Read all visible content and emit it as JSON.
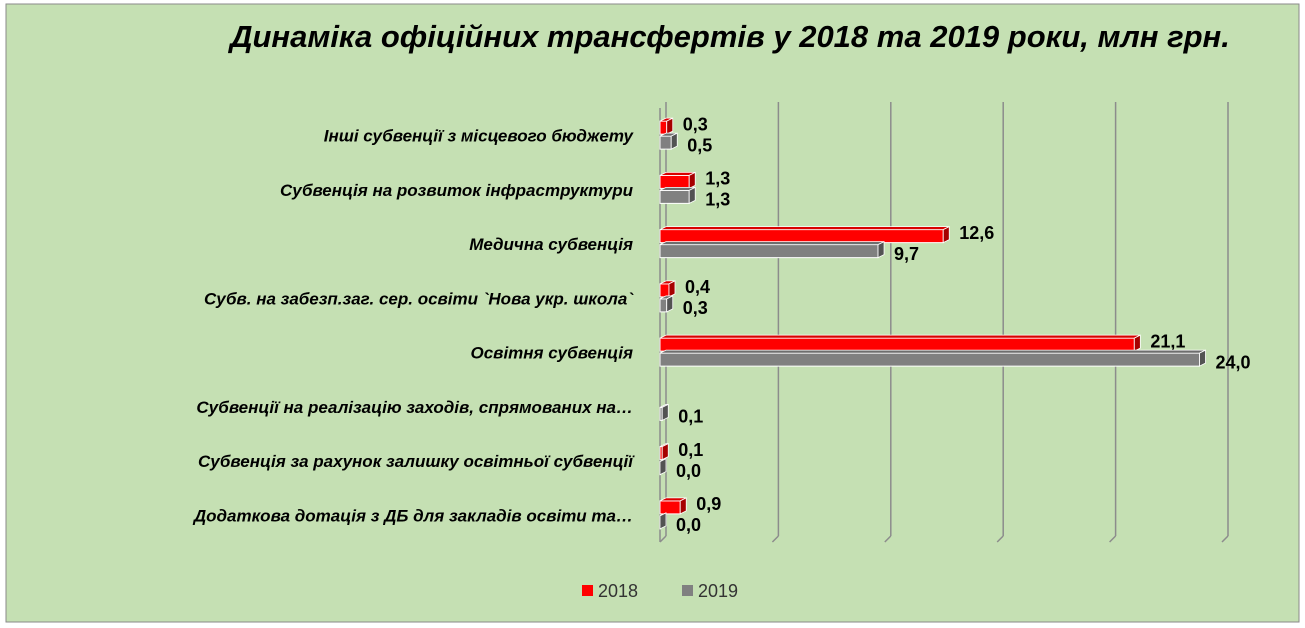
{
  "chart_data": {
    "type": "bar",
    "orientation": "horizontal",
    "title": "Динаміка офіційних трансфертів  у 2018 та 2019 роки, млн грн.",
    "categories": [
      "Інші субвенції з місцевого бюджету",
      "Субвенція на розвиток інфраструктури",
      "Медична субвенція",
      "Субв. на забезп.заг. сер. освіти `Нова укр. школа`",
      "Освітня субвенція",
      "Субвенції на реалізацію заходів, спрямованих на…",
      "Субвенція за рахунок залишку освітньої субвенції",
      "Додаткова дотація з ДБ для закладів освіти та…"
    ],
    "series": [
      {
        "name": "2018",
        "color": "#ff0000",
        "values": [
          0.3,
          1.3,
          12.6,
          0.4,
          21.1,
          null,
          0.1,
          0.9
        ],
        "value_labels": [
          "0,3",
          "1,3",
          "12,6",
          "0,4",
          "21,1",
          null,
          "0,1",
          "0,9"
        ]
      },
      {
        "name": "2019",
        "color": "#808080",
        "values": [
          0.5,
          1.3,
          9.7,
          0.3,
          24.0,
          0.1,
          0.0,
          0.0
        ],
        "value_labels": [
          "0,5",
          "1,3",
          "9,7",
          "0,3",
          "24,0",
          "0,1",
          "0,0",
          "0,0"
        ]
      }
    ],
    "xlim": [
      0,
      25
    ],
    "xticks": [
      0,
      5,
      10,
      15,
      20,
      25
    ],
    "grid": true,
    "legend": "bottom"
  }
}
